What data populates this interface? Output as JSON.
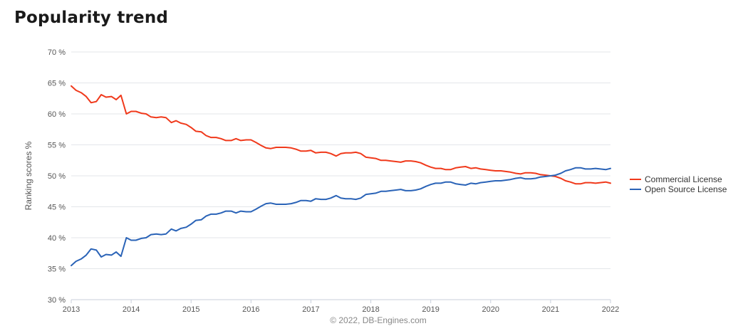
{
  "page": {
    "title": "Popularity trend"
  },
  "chart_data": {
    "type": "line",
    "ylabel": "Ranking scores %",
    "ylim": [
      30,
      70
    ],
    "xlim": [
      2013,
      2022
    ],
    "y_ticks": [
      30,
      35,
      40,
      45,
      50,
      55,
      60,
      65,
      70
    ],
    "y_tick_labels": [
      "30 %",
      "35 %",
      "40 %",
      "45 %",
      "50 %",
      "55 %",
      "60 %",
      "65 %",
      "70 %"
    ],
    "x_ticks": [
      2013,
      2014,
      2015,
      2016,
      2017,
      2018,
      2019,
      2020,
      2021,
      2022
    ],
    "x_tick_labels": [
      "2013",
      "2014",
      "2015",
      "2016",
      "2017",
      "2018",
      "2019",
      "2020",
      "2021",
      "2022"
    ],
    "grid": "horizontal",
    "legend_position": "right",
    "credit": "© 2022, DB-Engines.com",
    "series": [
      {
        "name": "Commercial License",
        "color": "#f0391b",
        "points": [
          [
            2013.0,
            64.5
          ],
          [
            2013.08,
            63.8
          ],
          [
            2013.17,
            63.4
          ],
          [
            2013.25,
            62.8
          ],
          [
            2013.33,
            61.8
          ],
          [
            2013.42,
            62.0
          ],
          [
            2013.5,
            63.1
          ],
          [
            2013.58,
            62.7
          ],
          [
            2013.67,
            62.8
          ],
          [
            2013.75,
            62.3
          ],
          [
            2013.83,
            63.0
          ],
          [
            2013.92,
            60.0
          ],
          [
            2014.0,
            60.4
          ],
          [
            2014.08,
            60.4
          ],
          [
            2014.17,
            60.1
          ],
          [
            2014.25,
            60.0
          ],
          [
            2014.33,
            59.5
          ],
          [
            2014.42,
            59.4
          ],
          [
            2014.5,
            59.5
          ],
          [
            2014.58,
            59.4
          ],
          [
            2014.67,
            58.6
          ],
          [
            2014.75,
            58.9
          ],
          [
            2014.83,
            58.5
          ],
          [
            2014.92,
            58.3
          ],
          [
            2015.0,
            57.8
          ],
          [
            2015.08,
            57.2
          ],
          [
            2015.17,
            57.1
          ],
          [
            2015.25,
            56.5
          ],
          [
            2015.33,
            56.2
          ],
          [
            2015.42,
            56.2
          ],
          [
            2015.5,
            56.0
          ],
          [
            2015.58,
            55.7
          ],
          [
            2015.67,
            55.7
          ],
          [
            2015.75,
            56.0
          ],
          [
            2015.83,
            55.7
          ],
          [
            2015.92,
            55.8
          ],
          [
            2016.0,
            55.8
          ],
          [
            2016.08,
            55.4
          ],
          [
            2016.17,
            54.9
          ],
          [
            2016.25,
            54.5
          ],
          [
            2016.33,
            54.4
          ],
          [
            2016.42,
            54.6
          ],
          [
            2016.5,
            54.6
          ],
          [
            2016.58,
            54.6
          ],
          [
            2016.67,
            54.5
          ],
          [
            2016.75,
            54.3
          ],
          [
            2016.83,
            54.0
          ],
          [
            2016.92,
            54.0
          ],
          [
            2017.0,
            54.1
          ],
          [
            2017.08,
            53.7
          ],
          [
            2017.17,
            53.8
          ],
          [
            2017.25,
            53.8
          ],
          [
            2017.33,
            53.6
          ],
          [
            2017.42,
            53.2
          ],
          [
            2017.5,
            53.6
          ],
          [
            2017.58,
            53.7
          ],
          [
            2017.67,
            53.7
          ],
          [
            2017.75,
            53.8
          ],
          [
            2017.83,
            53.6
          ],
          [
            2017.92,
            53.0
          ],
          [
            2018.0,
            52.9
          ],
          [
            2018.08,
            52.8
          ],
          [
            2018.17,
            52.5
          ],
          [
            2018.25,
            52.5
          ],
          [
            2018.33,
            52.4
          ],
          [
            2018.42,
            52.3
          ],
          [
            2018.5,
            52.2
          ],
          [
            2018.58,
            52.4
          ],
          [
            2018.67,
            52.4
          ],
          [
            2018.75,
            52.3
          ],
          [
            2018.83,
            52.1
          ],
          [
            2018.92,
            51.7
          ],
          [
            2019.0,
            51.4
          ],
          [
            2019.08,
            51.2
          ],
          [
            2019.17,
            51.2
          ],
          [
            2019.25,
            51.0
          ],
          [
            2019.33,
            51.0
          ],
          [
            2019.42,
            51.3
          ],
          [
            2019.5,
            51.4
          ],
          [
            2019.58,
            51.5
          ],
          [
            2019.67,
            51.2
          ],
          [
            2019.75,
            51.3
          ],
          [
            2019.83,
            51.1
          ],
          [
            2019.92,
            51.0
          ],
          [
            2020.0,
            50.9
          ],
          [
            2020.08,
            50.8
          ],
          [
            2020.17,
            50.8
          ],
          [
            2020.25,
            50.7
          ],
          [
            2020.33,
            50.6
          ],
          [
            2020.42,
            50.4
          ],
          [
            2020.5,
            50.3
          ],
          [
            2020.58,
            50.5
          ],
          [
            2020.67,
            50.5
          ],
          [
            2020.75,
            50.4
          ],
          [
            2020.83,
            50.2
          ],
          [
            2020.92,
            50.1
          ],
          [
            2021.0,
            50.0
          ],
          [
            2021.08,
            49.9
          ],
          [
            2021.17,
            49.6
          ],
          [
            2021.25,
            49.2
          ],
          [
            2021.33,
            49.0
          ],
          [
            2021.42,
            48.7
          ],
          [
            2021.5,
            48.7
          ],
          [
            2021.58,
            48.9
          ],
          [
            2021.67,
            48.9
          ],
          [
            2021.75,
            48.8
          ],
          [
            2021.83,
            48.9
          ],
          [
            2021.92,
            49.0
          ],
          [
            2022.0,
            48.8
          ]
        ]
      },
      {
        "name": "Open Source License",
        "color": "#2a63b7",
        "points": [
          [
            2013.0,
            35.5
          ],
          [
            2013.08,
            36.2
          ],
          [
            2013.17,
            36.6
          ],
          [
            2013.25,
            37.2
          ],
          [
            2013.33,
            38.2
          ],
          [
            2013.42,
            38.0
          ],
          [
            2013.5,
            36.9
          ],
          [
            2013.58,
            37.3
          ],
          [
            2013.67,
            37.2
          ],
          [
            2013.75,
            37.7
          ],
          [
            2013.83,
            37.0
          ],
          [
            2013.92,
            40.0
          ],
          [
            2014.0,
            39.6
          ],
          [
            2014.08,
            39.6
          ],
          [
            2014.17,
            39.9
          ],
          [
            2014.25,
            40.0
          ],
          [
            2014.33,
            40.5
          ],
          [
            2014.42,
            40.6
          ],
          [
            2014.5,
            40.5
          ],
          [
            2014.58,
            40.6
          ],
          [
            2014.67,
            41.4
          ],
          [
            2014.75,
            41.1
          ],
          [
            2014.83,
            41.5
          ],
          [
            2014.92,
            41.7
          ],
          [
            2015.0,
            42.2
          ],
          [
            2015.08,
            42.8
          ],
          [
            2015.17,
            42.9
          ],
          [
            2015.25,
            43.5
          ],
          [
            2015.33,
            43.8
          ],
          [
            2015.42,
            43.8
          ],
          [
            2015.5,
            44.0
          ],
          [
            2015.58,
            44.3
          ],
          [
            2015.67,
            44.3
          ],
          [
            2015.75,
            44.0
          ],
          [
            2015.83,
            44.3
          ],
          [
            2015.92,
            44.2
          ],
          [
            2016.0,
            44.2
          ],
          [
            2016.08,
            44.6
          ],
          [
            2016.17,
            45.1
          ],
          [
            2016.25,
            45.5
          ],
          [
            2016.33,
            45.6
          ],
          [
            2016.42,
            45.4
          ],
          [
            2016.5,
            45.4
          ],
          [
            2016.58,
            45.4
          ],
          [
            2016.67,
            45.5
          ],
          [
            2016.75,
            45.7
          ],
          [
            2016.83,
            46.0
          ],
          [
            2016.92,
            46.0
          ],
          [
            2017.0,
            45.9
          ],
          [
            2017.08,
            46.3
          ],
          [
            2017.17,
            46.2
          ],
          [
            2017.25,
            46.2
          ],
          [
            2017.33,
            46.4
          ],
          [
            2017.42,
            46.8
          ],
          [
            2017.5,
            46.4
          ],
          [
            2017.58,
            46.3
          ],
          [
            2017.67,
            46.3
          ],
          [
            2017.75,
            46.2
          ],
          [
            2017.83,
            46.4
          ],
          [
            2017.92,
            47.0
          ],
          [
            2018.0,
            47.1
          ],
          [
            2018.08,
            47.2
          ],
          [
            2018.17,
            47.5
          ],
          [
            2018.25,
            47.5
          ],
          [
            2018.33,
            47.6
          ],
          [
            2018.42,
            47.7
          ],
          [
            2018.5,
            47.8
          ],
          [
            2018.58,
            47.6
          ],
          [
            2018.67,
            47.6
          ],
          [
            2018.75,
            47.7
          ],
          [
            2018.83,
            47.9
          ],
          [
            2018.92,
            48.3
          ],
          [
            2019.0,
            48.6
          ],
          [
            2019.08,
            48.8
          ],
          [
            2019.17,
            48.8
          ],
          [
            2019.25,
            49.0
          ],
          [
            2019.33,
            49.0
          ],
          [
            2019.42,
            48.7
          ],
          [
            2019.5,
            48.6
          ],
          [
            2019.58,
            48.5
          ],
          [
            2019.67,
            48.8
          ],
          [
            2019.75,
            48.7
          ],
          [
            2019.83,
            48.9
          ],
          [
            2019.92,
            49.0
          ],
          [
            2020.0,
            49.1
          ],
          [
            2020.08,
            49.2
          ],
          [
            2020.17,
            49.2
          ],
          [
            2020.25,
            49.3
          ],
          [
            2020.33,
            49.4
          ],
          [
            2020.42,
            49.6
          ],
          [
            2020.5,
            49.7
          ],
          [
            2020.58,
            49.5
          ],
          [
            2020.67,
            49.5
          ],
          [
            2020.75,
            49.6
          ],
          [
            2020.83,
            49.8
          ],
          [
            2020.92,
            49.9
          ],
          [
            2021.0,
            50.0
          ],
          [
            2021.08,
            50.1
          ],
          [
            2021.17,
            50.4
          ],
          [
            2021.25,
            50.8
          ],
          [
            2021.33,
            51.0
          ],
          [
            2021.42,
            51.3
          ],
          [
            2021.5,
            51.3
          ],
          [
            2021.58,
            51.1
          ],
          [
            2021.67,
            51.1
          ],
          [
            2021.75,
            51.2
          ],
          [
            2021.83,
            51.1
          ],
          [
            2021.92,
            51.0
          ],
          [
            2022.0,
            51.2
          ]
        ]
      }
    ]
  }
}
